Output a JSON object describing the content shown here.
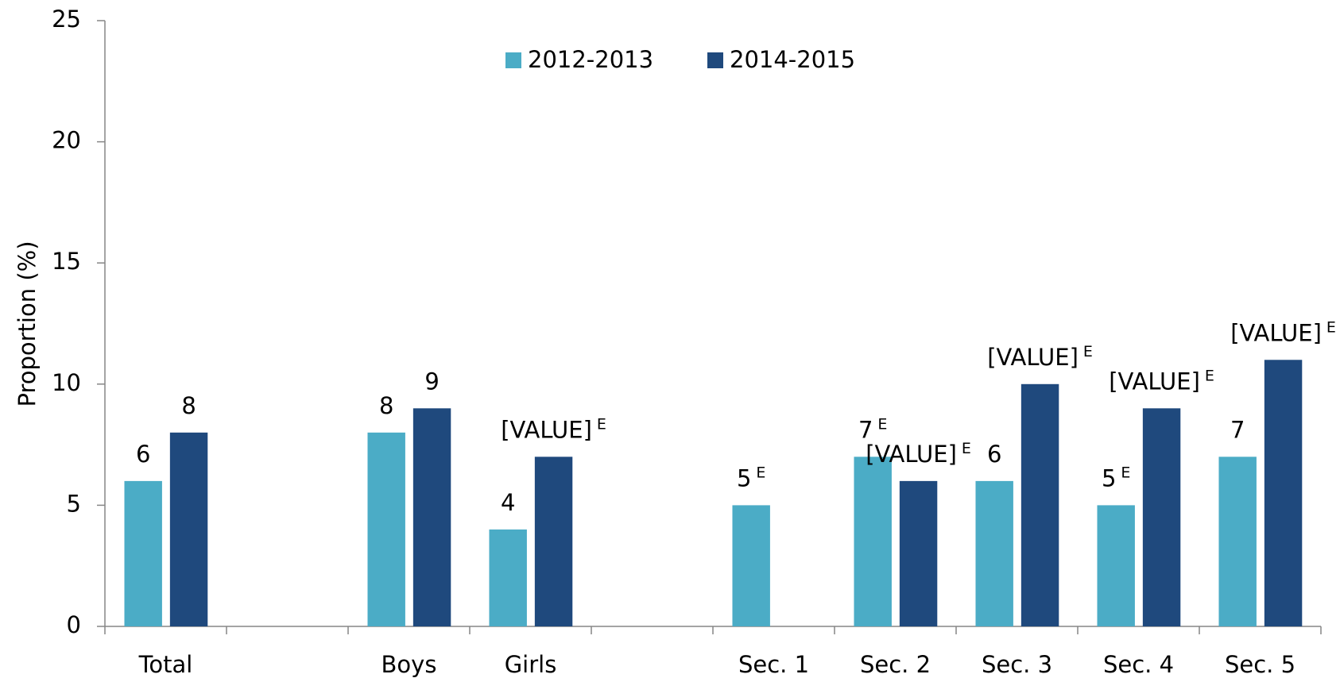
{
  "chart_data": {
    "type": "bar",
    "y_label": "Proportion (%)",
    "categories": [
      "Total",
      null,
      "Boys",
      "Girls",
      null,
      "Sec. 1",
      "Sec. 2",
      "Sec. 3",
      "Sec. 4",
      "Sec. 5"
    ],
    "series": [
      {
        "name": "2012-2013",
        "color": "#4bacc6",
        "values": [
          6,
          null,
          8,
          4,
          null,
          5,
          7,
          6,
          5,
          7
        ],
        "value_labels": [
          "6",
          null,
          "8",
          "4",
          null,
          "5",
          "7",
          "6",
          "5",
          "7"
        ],
        "value_notes": [
          null,
          null,
          null,
          null,
          null,
          "E",
          "E",
          null,
          "E",
          null
        ]
      },
      {
        "name": "2014-2015",
        "color": "#1f497d",
        "values": [
          8,
          null,
          9,
          7,
          null,
          null,
          6,
          10,
          9,
          11
        ],
        "value_labels": [
          "8",
          null,
          "9",
          "[VALUE]",
          null,
          null,
          "[VALUE]",
          "[VALUE]",
          "[VALUE]",
          "[VALUE]"
        ],
        "value_notes": [
          null,
          null,
          null,
          "E",
          null,
          null,
          "E",
          "E",
          "E",
          "E"
        ]
      }
    ],
    "ylim": [
      0,
      25
    ],
    "yticks": [
      0,
      5,
      10,
      15,
      20,
      25
    ],
    "grid": false,
    "legend": "top"
  }
}
